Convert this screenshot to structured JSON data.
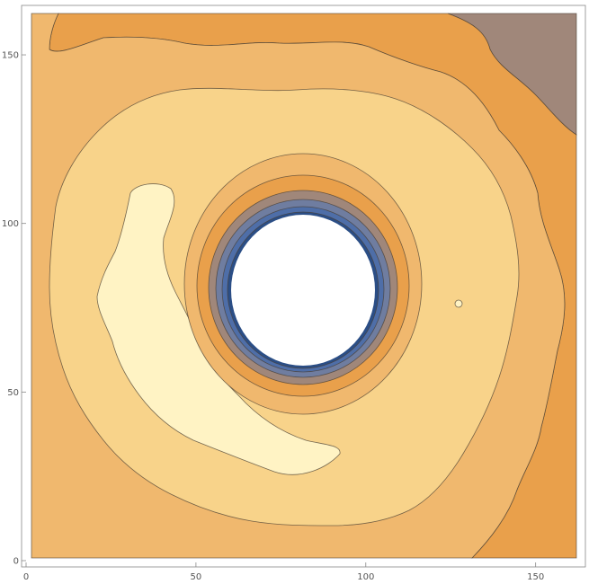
{
  "chart_data": {
    "type": "contour",
    "title": "",
    "xlabel": "",
    "ylabel": "",
    "xlim": [
      0,
      162
    ],
    "ylim": [
      0,
      162
    ],
    "x_ticks": [
      0,
      50,
      100,
      150
    ],
    "y_ticks": [
      0,
      50,
      100,
      150
    ],
    "x_tick_labels": [
      "0",
      "50",
      "100",
      "150"
    ],
    "y_tick_labels": [
      "0",
      "50",
      "100",
      "150"
    ],
    "grid": false,
    "legend": "none",
    "hole": {
      "center": [
        80,
        78
      ],
      "radius": 22,
      "fill": "#ffffff"
    },
    "color_levels": [
      "#fff3c4",
      "#f8d38a",
      "#f0b86e",
      "#e9a04b",
      "#a0877a",
      "#6f7da0",
      "#4e6ea8",
      "#2b4e86"
    ],
    "regions": [
      {
        "name": "corner-region",
        "fill": "#a0877a"
      },
      {
        "name": "outer-band",
        "fill": "#e9a04b"
      },
      {
        "name": "second-band",
        "fill": "#f0b86e"
      },
      {
        "name": "third-band",
        "fill": "#f8d38a"
      },
      {
        "name": "crescent-region",
        "fill": "#fff3c4"
      }
    ]
  }
}
